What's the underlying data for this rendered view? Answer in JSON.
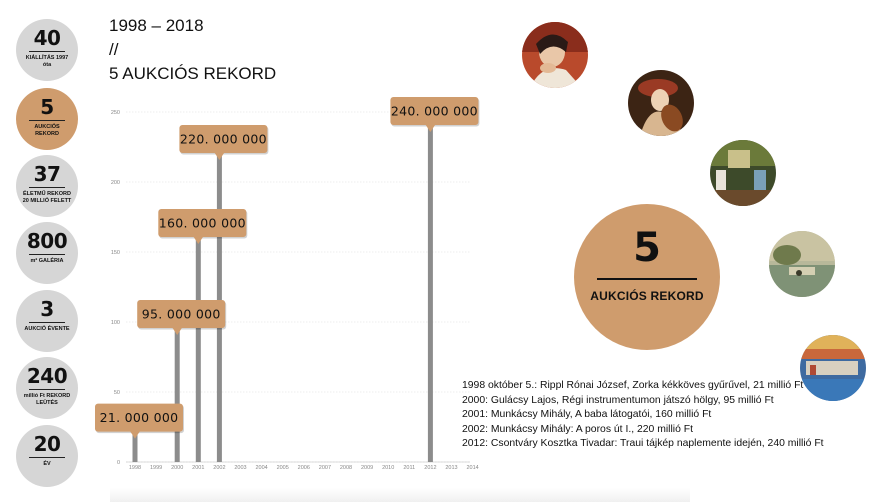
{
  "stats": [
    {
      "number": "40",
      "label": "KIÁLLÍTÁS 1997 óta"
    },
    {
      "number": "5",
      "label": "AUKCIÓS REKORD"
    },
    {
      "number": "37",
      "label": "ÉLETMŰ REKORD 20 MILLIÓ FELETT"
    },
    {
      "number": "800",
      "label": "m² GALÉRIA"
    },
    {
      "number": "3",
      "label": "AUKCIÓ ÉVENTE"
    },
    {
      "number": "240",
      "label": "millió Ft REKORD LEÜTÉS"
    },
    {
      "number": "20",
      "label": "ÉV"
    }
  ],
  "heading": {
    "line1": "1998 – 2018",
    "line2": "//",
    "line3": "5 AUKCIÓS REKORD"
  },
  "big_badge": {
    "number": "5",
    "label": "AUKCIÓS REKORD"
  },
  "footnotes": [
    "1998 október 5.: Rippl Rónai József, Zorka kékköves gyűrűvel, 21 millió Ft",
    "2000: Gulácsy Lajos, Régi instrumentumon játszó hölgy, 95 millió Ft",
    "2001: Munkácsy Mihály, A baba látogatói, 160 millió Ft",
    "2002: Munkácsy Mihály: A poros út I., 220 millió Ft",
    "2012: Csontváry Kosztka Tivadar: Traui tájkép naplemente idején, 240 millió Ft"
  ],
  "paintings": [
    {
      "icon": "portrait-woman-painting"
    },
    {
      "icon": "woman-instrument-painting"
    },
    {
      "icon": "interior-scene-painting"
    },
    {
      "icon": "dusty-road-landscape-painting"
    },
    {
      "icon": "sunset-coast-painting"
    }
  ],
  "colors": {
    "accent": "#cf9c6d",
    "inactive": "#d6d6d6",
    "bar": "#8c8c8c"
  },
  "chart_data": {
    "type": "bar",
    "categories": [
      "1998",
      "1999",
      "2000",
      "2001",
      "2002",
      "2003",
      "2004",
      "2005",
      "2006",
      "2007",
      "2008",
      "2009",
      "2010",
      "2011",
      "2012",
      "2013",
      "2014"
    ],
    "values": [
      21,
      0,
      95,
      160,
      220,
      0,
      0,
      0,
      0,
      0,
      0,
      0,
      0,
      0,
      240,
      0,
      0
    ],
    "data_labels": [
      "21. 000 000",
      "",
      "95. 000 000",
      "160. 000 000",
      "220. 000 000",
      "",
      "",
      "",
      "",
      "",
      "",
      "",
      "",
      "",
      "240. 000 000",
      "",
      ""
    ],
    "yticks": [
      0,
      50,
      100,
      150,
      200,
      250
    ],
    "ylim": [
      0,
      250
    ],
    "grid": true,
    "title": "",
    "xlabel": "",
    "ylabel": ""
  }
}
